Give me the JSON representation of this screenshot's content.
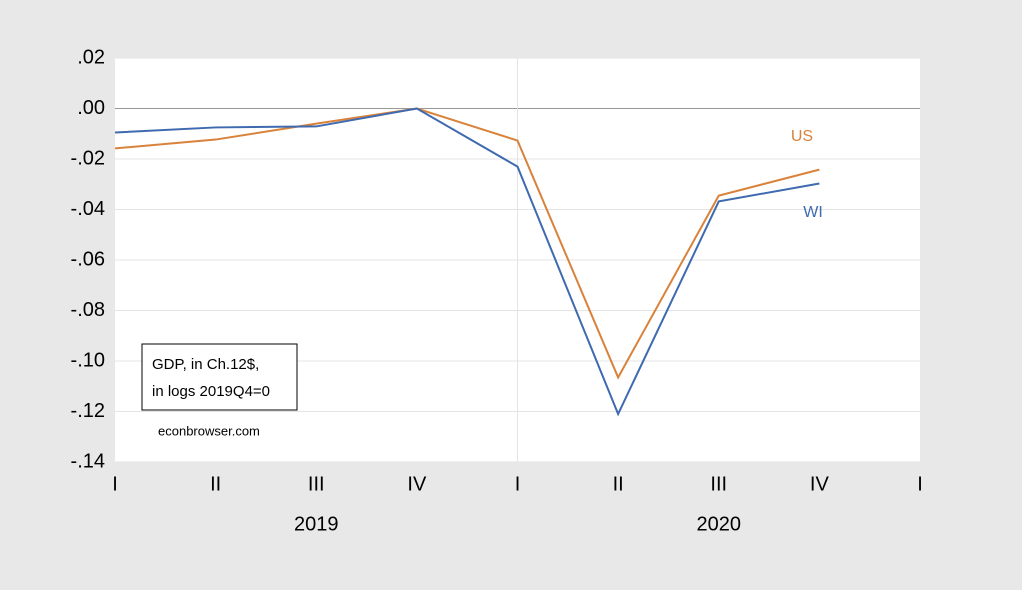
{
  "chart_data": {
    "type": "line",
    "categories": [
      "I",
      "II",
      "III",
      "IV",
      "I",
      "II",
      "III",
      "IV",
      "I"
    ],
    "years": [
      "2019",
      "2020"
    ],
    "series": [
      {
        "name": "US",
        "color": "#d9823b",
        "values": [
          -0.0158,
          -0.0123,
          -0.006,
          0,
          -0.0127,
          -0.1065,
          -0.0345,
          -0.0242,
          null
        ]
      },
      {
        "name": "WI",
        "color": "#3f6ab0",
        "values": [
          -0.0095,
          -0.0075,
          -0.0071,
          0,
          -0.023,
          -0.121,
          -0.0368,
          -0.0297,
          null
        ]
      }
    ],
    "ylim": [
      -0.14,
      0.02
    ],
    "yticks": [
      {
        "value": 0.02,
        "label": ".02"
      },
      {
        "value": 0,
        "label": ".00"
      },
      {
        "value": -0.02,
        "label": "-.02"
      },
      {
        "value": -0.04,
        "label": "-.04"
      },
      {
        "value": -0.06,
        "label": "-.06"
      },
      {
        "value": -0.08,
        "label": "-.08"
      },
      {
        "value": -0.1,
        "label": "-.10"
      },
      {
        "value": -0.12,
        "label": "-.12"
      },
      {
        "value": -0.14,
        "label": "-.14"
      }
    ],
    "grid": true,
    "annotation": [
      "GDP, in Ch.12$,",
      "in logs 2019Q4=0"
    ],
    "source": "econbrowser.com"
  }
}
